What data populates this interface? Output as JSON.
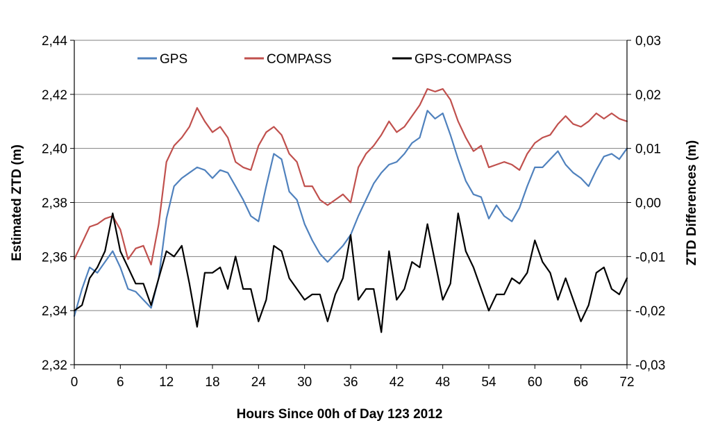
{
  "chart_data": {
    "type": "line",
    "title": "",
    "xlabel": "Hours Since 00h of Day 123 2012",
    "ylabel": "Estimated ZTD (m)",
    "y2label": "ZTD Differences (m)",
    "xlim": [
      0,
      72
    ],
    "ylim": [
      2.32,
      2.44
    ],
    "y2lim": [
      -0.03,
      0.03
    ],
    "x_ticks": [
      "0",
      "6",
      "12",
      "18",
      "24",
      "30",
      "36",
      "42",
      "48",
      "54",
      "60",
      "66",
      "72"
    ],
    "y_ticks": [
      "2,32",
      "2,34",
      "2,36",
      "2,38",
      "2,40",
      "2,42",
      "2,44"
    ],
    "y2_ticks": [
      "-0,03",
      "-0,02",
      "-0,01",
      "0,00",
      "0,01",
      "0,02",
      "0,03"
    ],
    "grid": true,
    "legend_position": "top",
    "x": [
      0,
      1,
      2,
      3,
      4,
      5,
      6,
      7,
      8,
      9,
      10,
      11,
      12,
      13,
      14,
      15,
      16,
      17,
      18,
      19,
      20,
      21,
      22,
      23,
      24,
      25,
      26,
      27,
      28,
      29,
      30,
      31,
      32,
      33,
      34,
      35,
      36,
      37,
      38,
      39,
      40,
      41,
      42,
      43,
      44,
      45,
      46,
      47,
      48,
      49,
      50,
      51,
      52,
      53,
      54,
      55,
      56,
      57,
      58,
      59,
      60,
      61,
      62,
      63,
      64,
      65,
      66,
      67,
      68,
      69,
      70,
      71,
      72
    ],
    "series": [
      {
        "name": "GPS",
        "axis": "left",
        "color": "#4F81BD",
        "values": [
          2.338,
          2.348,
          2.356,
          2.354,
          2.358,
          2.362,
          2.356,
          2.348,
          2.347,
          2.344,
          2.341,
          2.352,
          2.374,
          2.386,
          2.389,
          2.391,
          2.393,
          2.392,
          2.389,
          2.392,
          2.391,
          2.386,
          2.381,
          2.375,
          2.373,
          2.386,
          2.398,
          2.396,
          2.384,
          2.381,
          2.372,
          2.366,
          2.361,
          2.358,
          2.361,
          2.364,
          2.368,
          2.375,
          2.381,
          2.387,
          2.391,
          2.394,
          2.395,
          2.398,
          2.402,
          2.404,
          2.414,
          2.411,
          2.413,
          2.405,
          2.396,
          2.388,
          2.383,
          2.382,
          2.374,
          2.379,
          2.375,
          2.373,
          2.378,
          2.386,
          2.393,
          2.393,
          2.396,
          2.399,
          2.394,
          2.391,
          2.389,
          2.386,
          2.392,
          2.397,
          2.398,
          2.396,
          2.4
        ]
      },
      {
        "name": "COMPASS",
        "axis": "left",
        "color": "#C0504D",
        "values": [
          2.359,
          2.365,
          2.371,
          2.372,
          2.374,
          2.375,
          2.37,
          2.359,
          2.363,
          2.364,
          2.357,
          2.372,
          2.395,
          2.401,
          2.404,
          2.408,
          2.415,
          2.41,
          2.406,
          2.408,
          2.404,
          2.395,
          2.393,
          2.392,
          2.401,
          2.406,
          2.408,
          2.405,
          2.398,
          2.395,
          2.386,
          2.386,
          2.381,
          2.379,
          2.381,
          2.383,
          2.38,
          2.393,
          2.398,
          2.401,
          2.405,
          2.41,
          2.406,
          2.408,
          2.412,
          2.416,
          2.422,
          2.421,
          2.422,
          2.418,
          2.41,
          2.404,
          2.399,
          2.401,
          2.393,
          2.394,
          2.395,
          2.394,
          2.392,
          2.398,
          2.402,
          2.404,
          2.405,
          2.409,
          2.412,
          2.409,
          2.408,
          2.41,
          2.413,
          2.411,
          2.413,
          2.411,
          2.41
        ]
      },
      {
        "name": "GPS-COMPASS",
        "axis": "right",
        "color": "#000000",
        "values": [
          -0.02,
          -0.019,
          -0.014,
          -0.012,
          -0.009,
          -0.002,
          -0.009,
          -0.012,
          -0.015,
          -0.015,
          -0.019,
          -0.014,
          -0.009,
          -0.01,
          -0.008,
          -0.015,
          -0.023,
          -0.013,
          -0.013,
          -0.012,
          -0.016,
          -0.01,
          -0.016,
          -0.016,
          -0.022,
          -0.018,
          -0.008,
          -0.009,
          -0.014,
          -0.016,
          -0.018,
          -0.017,
          -0.017,
          -0.022,
          -0.017,
          -0.014,
          -0.006,
          -0.018,
          -0.016,
          -0.016,
          -0.024,
          -0.009,
          -0.018,
          -0.016,
          -0.011,
          -0.012,
          -0.004,
          -0.011,
          -0.018,
          -0.015,
          -0.002,
          -0.009,
          -0.012,
          -0.016,
          -0.02,
          -0.017,
          -0.017,
          -0.014,
          -0.015,
          -0.013,
          -0.007,
          -0.011,
          -0.013,
          -0.018,
          -0.014,
          -0.018,
          -0.022,
          -0.019,
          -0.013,
          -0.012,
          -0.016,
          -0.017,
          -0.014
        ]
      }
    ]
  }
}
